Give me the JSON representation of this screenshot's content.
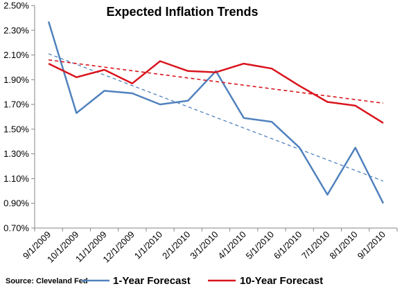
{
  "chart_data": {
    "type": "line",
    "title": "Expected Inflation Trends",
    "xlabel": "",
    "ylabel": "",
    "categories": [
      "9/1/2009",
      "10/1/2009",
      "11/1/2009",
      "12/1/2009",
      "1/1/2010",
      "2/1/2010",
      "3/1/2010",
      "4/1/2010",
      "5/1/2010",
      "6/1/2010",
      "7/1/2010",
      "8/1/2010",
      "9/1/2010"
    ],
    "ylim": [
      0.007,
      0.025
    ],
    "yticks": [
      "0.70%",
      "0.90%",
      "1.10%",
      "1.30%",
      "1.50%",
      "1.70%",
      "1.90%",
      "2.10%",
      "2.30%",
      "2.50%"
    ],
    "series": [
      {
        "name": "1-Year Forecast",
        "color": "#4f81bd",
        "values": [
          0.0237,
          0.0163,
          0.0181,
          0.0179,
          0.017,
          0.0173,
          0.0197,
          0.0159,
          0.0156,
          0.0135,
          0.0097,
          0.0135,
          0.009
        ],
        "trendline": {
          "start": 0.0211,
          "end": 0.0108
        }
      },
      {
        "name": "10-Year Forecast",
        "color": "#d9141c",
        "values": [
          0.0203,
          0.0192,
          0.0198,
          0.0187,
          0.0205,
          0.0197,
          0.0196,
          0.0203,
          0.0199,
          0.0185,
          0.0172,
          0.0169,
          0.0155
        ],
        "trendline": {
          "start": 0.0206,
          "end": 0.0171
        }
      }
    ],
    "grid": false,
    "legend": "bottom",
    "source": "Source: Cleveland Fed"
  }
}
